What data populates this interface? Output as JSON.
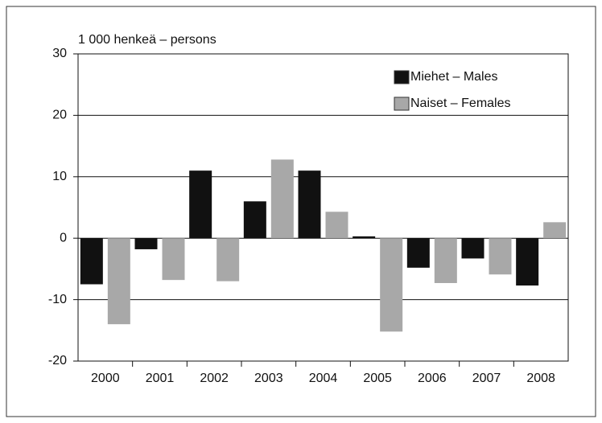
{
  "chart_data": {
    "type": "bar",
    "y_label": "1 000 henkeä – persons",
    "categories": [
      "2000",
      "2001",
      "2002",
      "2003",
      "2004",
      "2005",
      "2006",
      "2007",
      "2008"
    ],
    "series": [
      {
        "name": "Miehet – Males",
        "color": "#111111",
        "values": [
          -7.5,
          -1.8,
          11,
          6,
          11,
          0.3,
          -4.8,
          -3.3,
          -7.7
        ]
      },
      {
        "name": "Naiset – Females",
        "color": "#a8a8a8",
        "values": [
          -14,
          -6.8,
          -7,
          12.8,
          4.3,
          -15.2,
          -7.3,
          -5.9,
          2.6
        ]
      }
    ],
    "ylim": [
      -20,
      30
    ],
    "yticks": [
      -20,
      -10,
      0,
      10,
      20,
      30
    ],
    "grid": true,
    "legend": "top-right"
  }
}
